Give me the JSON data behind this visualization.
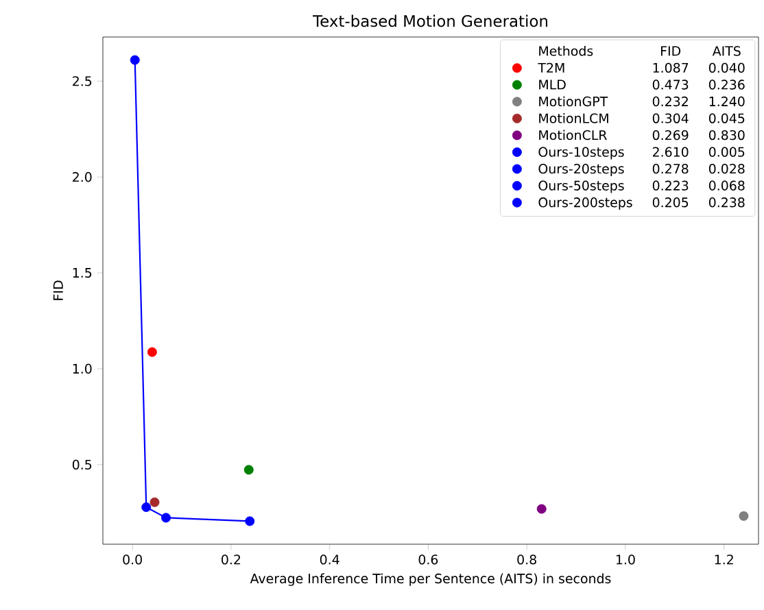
{
  "chart_data": {
    "type": "scatter",
    "title": "Text-based Motion Generation",
    "xlabel": "Average Inference Time per Sentence (AITS) in seconds",
    "ylabel": "FID",
    "legend_title": "Methods",
    "annotations": [
      "FID",
      "AITS",
      "1.087",
      "0.040",
      "0.473",
      "0.236",
      "0.232",
      "1.240",
      "0.304",
      "0.045",
      "0.269",
      "0.830",
      "2.610",
      "0.005",
      "0.278",
      "0.028",
      "0.223",
      "0.068",
      "0.205",
      "0.238"
    ],
    "xlim": [
      -0.06,
      1.27
    ],
    "ylim": [
      0.085,
      2.73
    ],
    "xticks": [
      {
        "value": 0.0,
        "label": "0.0"
      },
      0.2,
      0.4,
      0.6,
      0.8,
      {
        "value": 1.0,
        "label": "1.0"
      },
      1.2
    ],
    "yticks": [
      0.5,
      {
        "value": 1.0,
        "label": "1.0"
      },
      1.5,
      {
        "value": 2.0,
        "label": "2.0"
      },
      2.5
    ],
    "legend": "top right",
    "series": [
      {
        "type": "line",
        "color": "#0000ff",
        "x": [
          0.005,
          0.028,
          0.068,
          0.238
        ],
        "values": [
          2.61,
          0.278,
          0.223,
          0.205
        ]
      },
      {
        "name": "T2M",
        "marker": "circle",
        "color": "#ff0000",
        "x": [
          0.04
        ],
        "values": [
          1.087
        ]
      },
      {
        "name": "MLD",
        "marker": "circle",
        "color": "#008000",
        "x": [
          0.236
        ],
        "values": [
          0.473
        ]
      },
      {
        "name": "MotionGPT",
        "marker": "circle",
        "color": "#808080",
        "x": [
          1.24
        ],
        "values": [
          0.232
        ]
      },
      {
        "name": "MotionLCM",
        "marker": "circle",
        "color": "#a52a2a",
        "x": [
          0.045
        ],
        "values": [
          0.304
        ]
      },
      {
        "name": "MotionCLR",
        "marker": "circle",
        "color": "#800080",
        "x": [
          0.83
        ],
        "values": [
          0.269
        ]
      },
      {
        "name": "Ours-10steps",
        "marker": "circle",
        "color": "#0000ff",
        "x": [
          0.005
        ],
        "values": [
          2.61
        ]
      },
      {
        "name": "Ours-20steps",
        "marker": "circle",
        "color": "#0000ff",
        "x": [
          0.028
        ],
        "values": [
          0.278
        ]
      },
      {
        "name": "Ours-50steps",
        "marker": "circle",
        "color": "#0000ff",
        "x": [
          0.068
        ],
        "values": [
          0.223
        ]
      },
      {
        "name": "Ours-200steps",
        "marker": "circle",
        "color": "#0000ff",
        "x": [
          0.238
        ],
        "values": [
          0.205
        ]
      }
    ]
  }
}
